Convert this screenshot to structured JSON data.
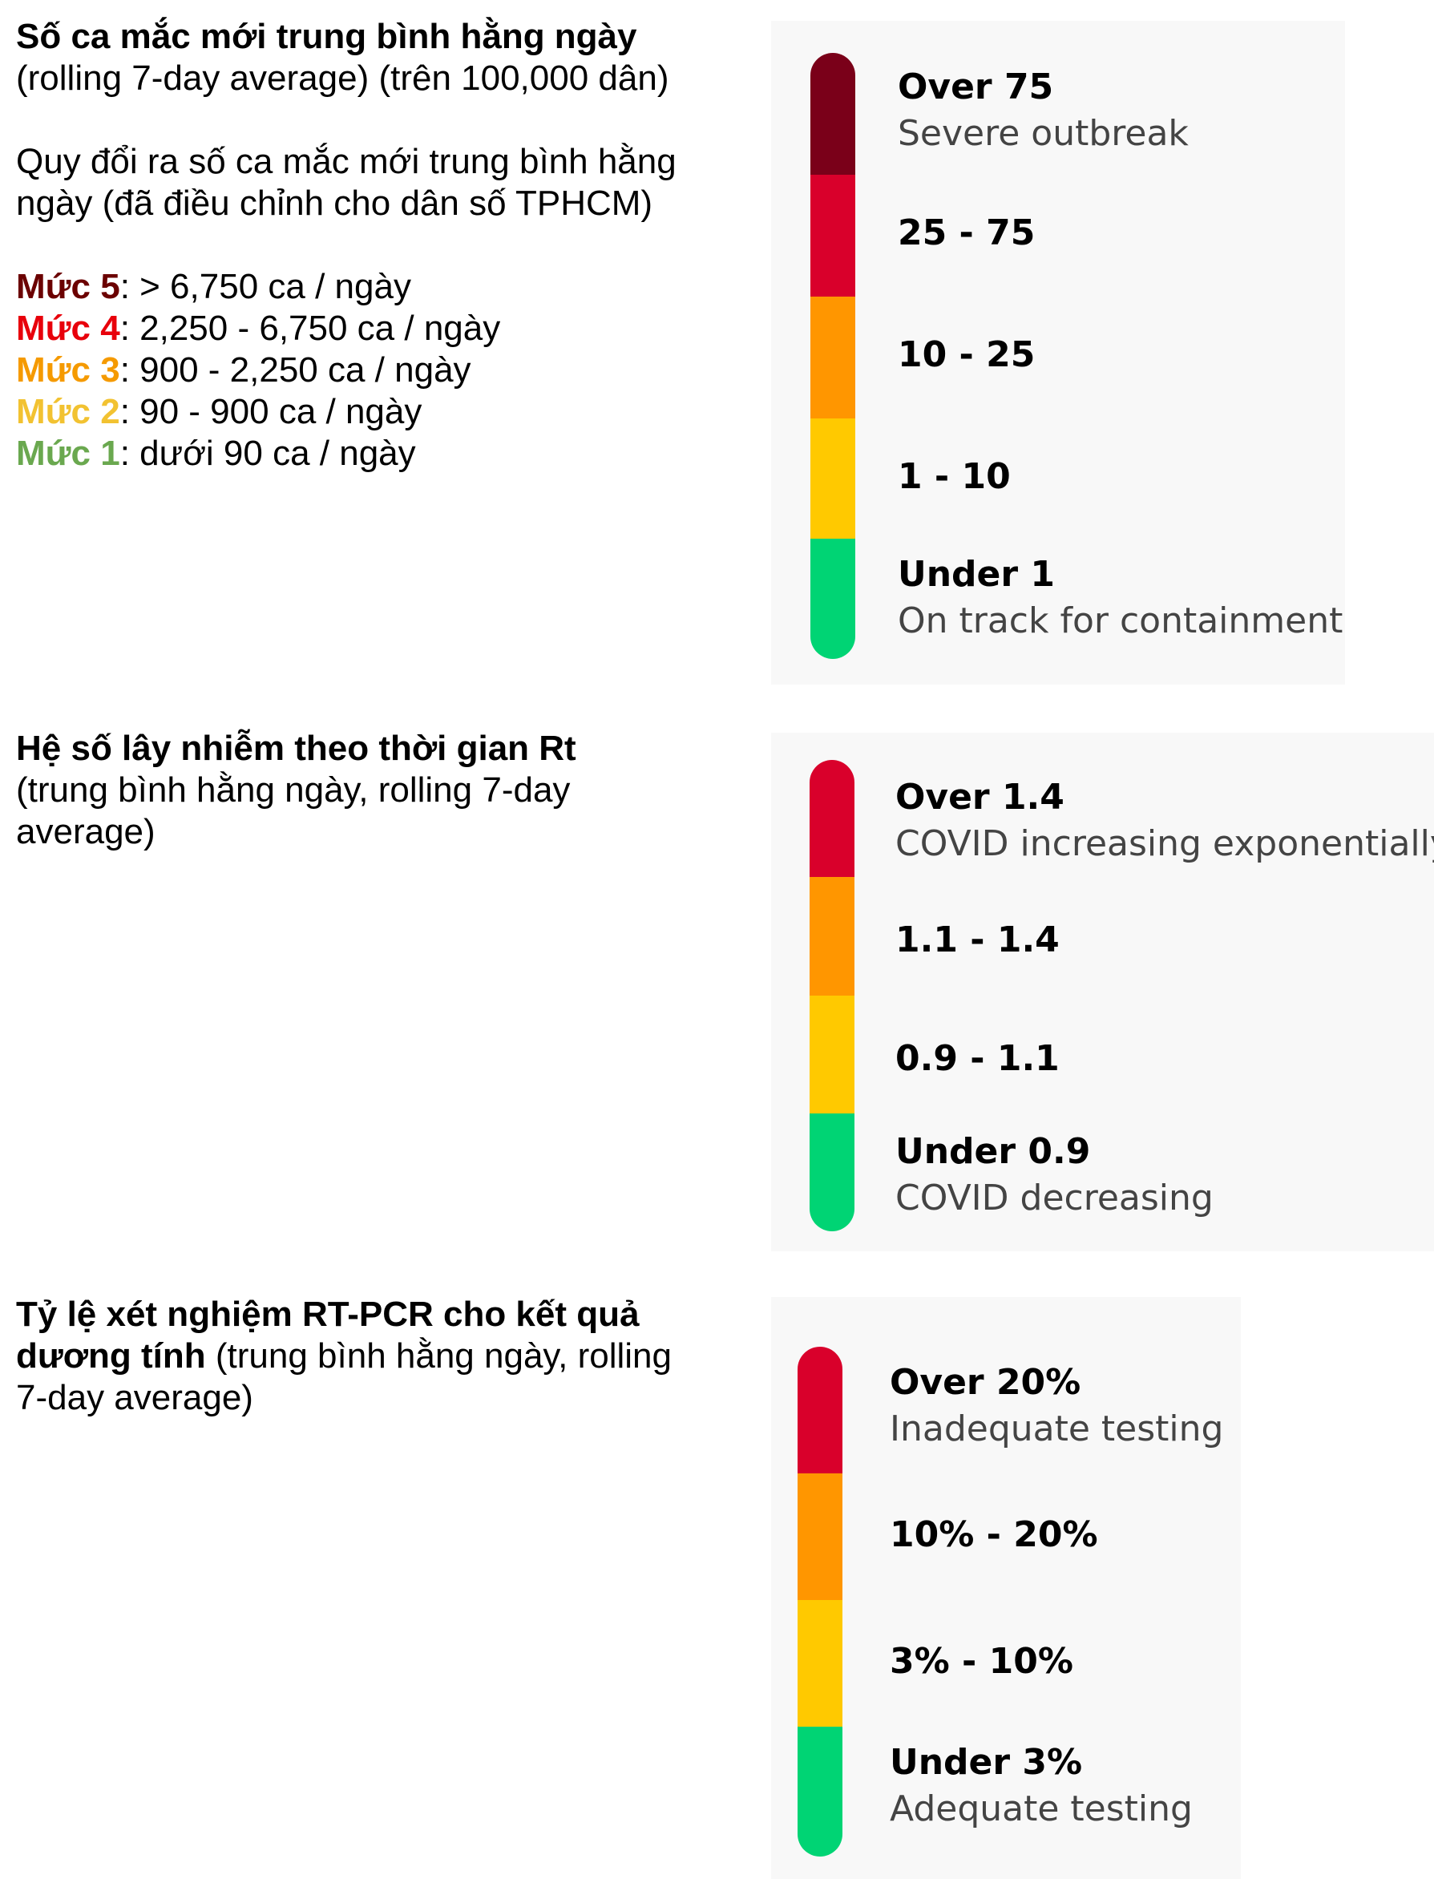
{
  "section1": {
    "title": "Số ca mắc mới trung bình hằng ngày",
    "subtitle": "(rolling 7-day average) (trên 100,000 dân)",
    "conversion_line1": "Quy đổi ra số ca mắc mới trung bình hằng",
    "conversion_line2": "ngày (đã điều chỉnh cho dân số TPHCM)",
    "levels": [
      {
        "name": "Mức 5",
        "text": ": > 6,750 ca / ngày",
        "color": "#6b0000"
      },
      {
        "name": "Mức 4",
        "text": ": 2,250 - 6,750 ca / ngày",
        "color": "#e8000b"
      },
      {
        "name": "Mức 3",
        "text": ": 900 - 2,250 ca / ngày",
        "color": "#f59a00"
      },
      {
        "name": "Mức 2",
        "text": ": 90 - 900 ca / ngày",
        "color": "#f2c231"
      },
      {
        "name": "Mức 1",
        "text": ": dưới 90 ca / ngày",
        "color": "#6aa84f"
      }
    ],
    "scale": [
      {
        "range": "Over 75",
        "desc": "Severe outbreak",
        "color": "#7a0019"
      },
      {
        "range": "25 - 75",
        "desc": "",
        "color": "#d9002b"
      },
      {
        "range": "10 - 25",
        "desc": "",
        "color": "#ff9600"
      },
      {
        "range": "1 - 10",
        "desc": "",
        "color": "#ffc900"
      },
      {
        "range": "Under 1",
        "desc": "On track for containment",
        "color": "#00d474"
      }
    ]
  },
  "section2": {
    "title": "Hệ số lây nhiễm theo thời gian Rt",
    "subtitle_line1": "(trung bình hằng ngày, rolling 7-day",
    "subtitle_line2": "average)",
    "scale": [
      {
        "range": "Over 1.4",
        "desc": "COVID increasing exponentially",
        "color": "#d9002b"
      },
      {
        "range": "1.1 - 1.4",
        "desc": "",
        "color": "#ff9600"
      },
      {
        "range": "0.9 - 1.1",
        "desc": "",
        "color": "#ffc900"
      },
      {
        "range": "Under 0.9",
        "desc": "COVID decreasing",
        "color": "#00d474"
      }
    ]
  },
  "section3": {
    "title_line1": "Tỷ lệ xét nghiệm RT-PCR cho kết quả",
    "title_line2_bold": "dương tính",
    "title_line2_rest": " (trung bình hằng ngày, rolling",
    "subtitle_line3": "7-day average)",
    "scale": [
      {
        "range": "Over 20%",
        "desc": "Inadequate testing",
        "color": "#d9002b"
      },
      {
        "range": "10% - 20%",
        "desc": "",
        "color": "#ff9600"
      },
      {
        "range": "3% - 10%",
        "desc": "",
        "color": "#ffc900"
      },
      {
        "range": "Under 3%",
        "desc": "Adequate testing",
        "color": "#00d474"
      }
    ]
  }
}
